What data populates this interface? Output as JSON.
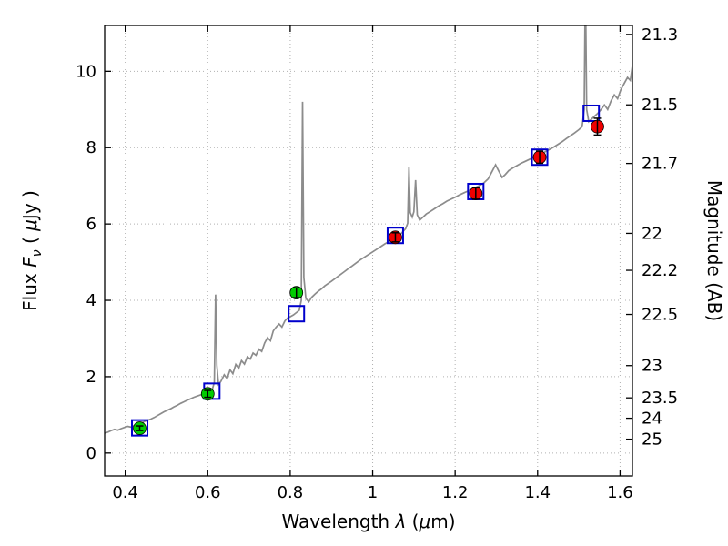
{
  "chart_data": {
    "type": "line",
    "title": "",
    "xlabel_parts": [
      {
        "t": "Wavelength  "
      },
      {
        "t": "λ",
        "i": true
      },
      {
        "t": " ("
      },
      {
        "t": "μ",
        "i": true
      },
      {
        "t": "m)"
      }
    ],
    "ylabel_left_parts": [
      {
        "t": "Flux  "
      },
      {
        "t": "F",
        "i": true
      },
      {
        "t": "ν",
        "i": true,
        "sub": true
      },
      {
        "t": "  ( "
      },
      {
        "t": "μ",
        "i": true
      },
      {
        "t": "Jy )"
      }
    ],
    "ylabel_right": "Magnitude (AB)",
    "xlim": [
      0.35,
      1.63
    ],
    "ylim": [
      -0.6,
      11.2
    ],
    "xticks": [
      0.4,
      0.6,
      0.8,
      1,
      1.2,
      1.4,
      1.6
    ],
    "xtick_labels": [
      "0.4",
      "0.6",
      "0.8",
      "1",
      "1.2",
      "1.4",
      "1.6"
    ],
    "yticks_flux": [
      0,
      2,
      4,
      6,
      8,
      10
    ],
    "ytick_labels_flux": [
      "0",
      "2",
      "4",
      "6",
      "8",
      "10"
    ],
    "mag_ticks": [
      21.3,
      21.5,
      21.7,
      22,
      22.2,
      22.5,
      23,
      23.5,
      24,
      25
    ],
    "mag_tick_labels": [
      "21.3",
      "21.5",
      "21.7",
      "22",
      "22.2",
      "22.5",
      "23",
      "23.5",
      "24",
      "25"
    ],
    "mag_zeropoint": 23.9,
    "grid": true,
    "legend": "none",
    "colors": {
      "spectrum": "#8c8c8c",
      "model_square": "#0000cc",
      "observed_green": "#00cc00",
      "observed_red": "#ee0000",
      "errorbar": "#000000",
      "grid": "#b0b0b0",
      "frame": "#000000"
    },
    "series": [
      {
        "name": "model-spectrum",
        "type": "line",
        "points": [
          [
            0.35,
            0.52
          ],
          [
            0.358,
            0.55
          ],
          [
            0.366,
            0.59
          ],
          [
            0.374,
            0.62
          ],
          [
            0.382,
            0.6
          ],
          [
            0.39,
            0.64
          ],
          [
            0.398,
            0.67
          ],
          [
            0.406,
            0.7
          ],
          [
            0.414,
            0.68
          ],
          [
            0.422,
            0.72
          ],
          [
            0.43,
            0.75
          ],
          [
            0.438,
            0.78
          ],
          [
            0.446,
            0.82
          ],
          [
            0.454,
            0.86
          ],
          [
            0.462,
            0.89
          ],
          [
            0.47,
            0.93
          ],
          [
            0.478,
            0.98
          ],
          [
            0.486,
            1.03
          ],
          [
            0.494,
            1.08
          ],
          [
            0.502,
            1.12
          ],
          [
            0.51,
            1.16
          ],
          [
            0.518,
            1.21
          ],
          [
            0.526,
            1.25
          ],
          [
            0.534,
            1.3
          ],
          [
            0.542,
            1.34
          ],
          [
            0.55,
            1.38
          ],
          [
            0.558,
            1.42
          ],
          [
            0.566,
            1.46
          ],
          [
            0.574,
            1.49
          ],
          [
            0.582,
            1.52
          ],
          [
            0.59,
            1.56
          ],
          [
            0.598,
            1.6
          ],
          [
            0.606,
            1.65
          ],
          [
            0.612,
            1.7
          ],
          [
            0.616,
            1.85
          ],
          [
            0.619,
            4.15
          ],
          [
            0.622,
            2.3
          ],
          [
            0.626,
            1.8
          ],
          [
            0.632,
            1.88
          ],
          [
            0.64,
            2.05
          ],
          [
            0.647,
            1.95
          ],
          [
            0.654,
            2.18
          ],
          [
            0.661,
            2.08
          ],
          [
            0.668,
            2.32
          ],
          [
            0.675,
            2.22
          ],
          [
            0.682,
            2.42
          ],
          [
            0.689,
            2.33
          ],
          [
            0.696,
            2.52
          ],
          [
            0.703,
            2.46
          ],
          [
            0.71,
            2.62
          ],
          [
            0.717,
            2.56
          ],
          [
            0.724,
            2.72
          ],
          [
            0.731,
            2.66
          ],
          [
            0.738,
            2.88
          ],
          [
            0.745,
            3.02
          ],
          [
            0.752,
            2.94
          ],
          [
            0.759,
            3.2
          ],
          [
            0.766,
            3.3
          ],
          [
            0.773,
            3.38
          ],
          [
            0.78,
            3.3
          ],
          [
            0.787,
            3.46
          ],
          [
            0.794,
            3.54
          ],
          [
            0.801,
            3.58
          ],
          [
            0.808,
            3.62
          ],
          [
            0.815,
            3.68
          ],
          [
            0.822,
            3.74
          ],
          [
            0.827,
            4.0
          ],
          [
            0.83,
            9.2
          ],
          [
            0.833,
            4.6
          ],
          [
            0.838,
            4.05
          ],
          [
            0.845,
            3.96
          ],
          [
            0.852,
            4.08
          ],
          [
            0.86,
            4.16
          ],
          [
            0.868,
            4.24
          ],
          [
            0.876,
            4.3
          ],
          [
            0.884,
            4.38
          ],
          [
            0.892,
            4.44
          ],
          [
            0.9,
            4.5
          ],
          [
            0.91,
            4.58
          ],
          [
            0.92,
            4.66
          ],
          [
            0.93,
            4.74
          ],
          [
            0.94,
            4.82
          ],
          [
            0.95,
            4.9
          ],
          [
            0.96,
            4.98
          ],
          [
            0.97,
            5.06
          ],
          [
            0.98,
            5.13
          ],
          [
            0.99,
            5.2
          ],
          [
            1.0,
            5.27
          ],
          [
            1.01,
            5.34
          ],
          [
            1.02,
            5.41
          ],
          [
            1.03,
            5.48
          ],
          [
            1.04,
            5.54
          ],
          [
            1.05,
            5.6
          ],
          [
            1.06,
            5.67
          ],
          [
            1.07,
            5.76
          ],
          [
            1.08,
            5.88
          ],
          [
            1.085,
            6.02
          ],
          [
            1.088,
            7.5
          ],
          [
            1.091,
            6.3
          ],
          [
            1.096,
            6.18
          ],
          [
            1.1,
            6.32
          ],
          [
            1.104,
            7.15
          ],
          [
            1.108,
            6.24
          ],
          [
            1.114,
            6.1
          ],
          [
            1.122,
            6.18
          ],
          [
            1.13,
            6.26
          ],
          [
            1.14,
            6.33
          ],
          [
            1.15,
            6.4
          ],
          [
            1.16,
            6.47
          ],
          [
            1.17,
            6.53
          ],
          [
            1.18,
            6.6
          ],
          [
            1.19,
            6.65
          ],
          [
            1.2,
            6.7
          ],
          [
            1.21,
            6.76
          ],
          [
            1.22,
            6.81
          ],
          [
            1.23,
            6.86
          ],
          [
            1.24,
            6.91
          ],
          [
            1.25,
            6.96
          ],
          [
            1.26,
            7.01
          ],
          [
            1.27,
            7.08
          ],
          [
            1.28,
            7.18
          ],
          [
            1.29,
            7.38
          ],
          [
            1.298,
            7.55
          ],
          [
            1.306,
            7.38
          ],
          [
            1.314,
            7.22
          ],
          [
            1.322,
            7.3
          ],
          [
            1.33,
            7.4
          ],
          [
            1.34,
            7.47
          ],
          [
            1.35,
            7.53
          ],
          [
            1.36,
            7.59
          ],
          [
            1.37,
            7.64
          ],
          [
            1.38,
            7.69
          ],
          [
            1.39,
            7.74
          ],
          [
            1.4,
            7.79
          ],
          [
            1.41,
            7.84
          ],
          [
            1.42,
            7.9
          ],
          [
            1.43,
            7.96
          ],
          [
            1.44,
            8.02
          ],
          [
            1.45,
            8.09
          ],
          [
            1.46,
            8.16
          ],
          [
            1.47,
            8.24
          ],
          [
            1.48,
            8.31
          ],
          [
            1.49,
            8.39
          ],
          [
            1.5,
            8.47
          ],
          [
            1.508,
            8.55
          ],
          [
            1.513,
            9.0
          ],
          [
            1.516,
            12.5
          ],
          [
            1.519,
            9.0
          ],
          [
            1.524,
            8.68
          ],
          [
            1.53,
            8.74
          ],
          [
            1.538,
            8.82
          ],
          [
            1.546,
            8.9
          ],
          [
            1.554,
            9.0
          ],
          [
            1.562,
            9.12
          ],
          [
            1.57,
            9.0
          ],
          [
            1.578,
            9.22
          ],
          [
            1.586,
            9.38
          ],
          [
            1.594,
            9.28
          ],
          [
            1.602,
            9.52
          ],
          [
            1.61,
            9.68
          ],
          [
            1.618,
            9.84
          ],
          [
            1.625,
            9.76
          ],
          [
            1.63,
            10.15
          ]
        ]
      },
      {
        "name": "model-photometry",
        "type": "square-open",
        "points": [
          [
            0.435,
            0.66
          ],
          [
            0.61,
            1.62
          ],
          [
            0.815,
            3.65
          ],
          [
            1.055,
            5.7
          ],
          [
            1.25,
            6.85
          ],
          [
            1.405,
            7.75
          ],
          [
            1.53,
            8.9
          ]
        ]
      },
      {
        "name": "observed-optical",
        "type": "circle",
        "points": [
          [
            0.435,
            0.65,
            0.06
          ],
          [
            0.6,
            1.55,
            0.09
          ],
          [
            0.815,
            4.2,
            0.13
          ]
        ]
      },
      {
        "name": "observed-infrared",
        "type": "circle",
        "points": [
          [
            1.055,
            5.65,
            0.12
          ],
          [
            1.25,
            6.8,
            0.15
          ],
          [
            1.405,
            7.75,
            0.16
          ],
          [
            1.545,
            8.55,
            0.22
          ]
        ]
      }
    ]
  }
}
